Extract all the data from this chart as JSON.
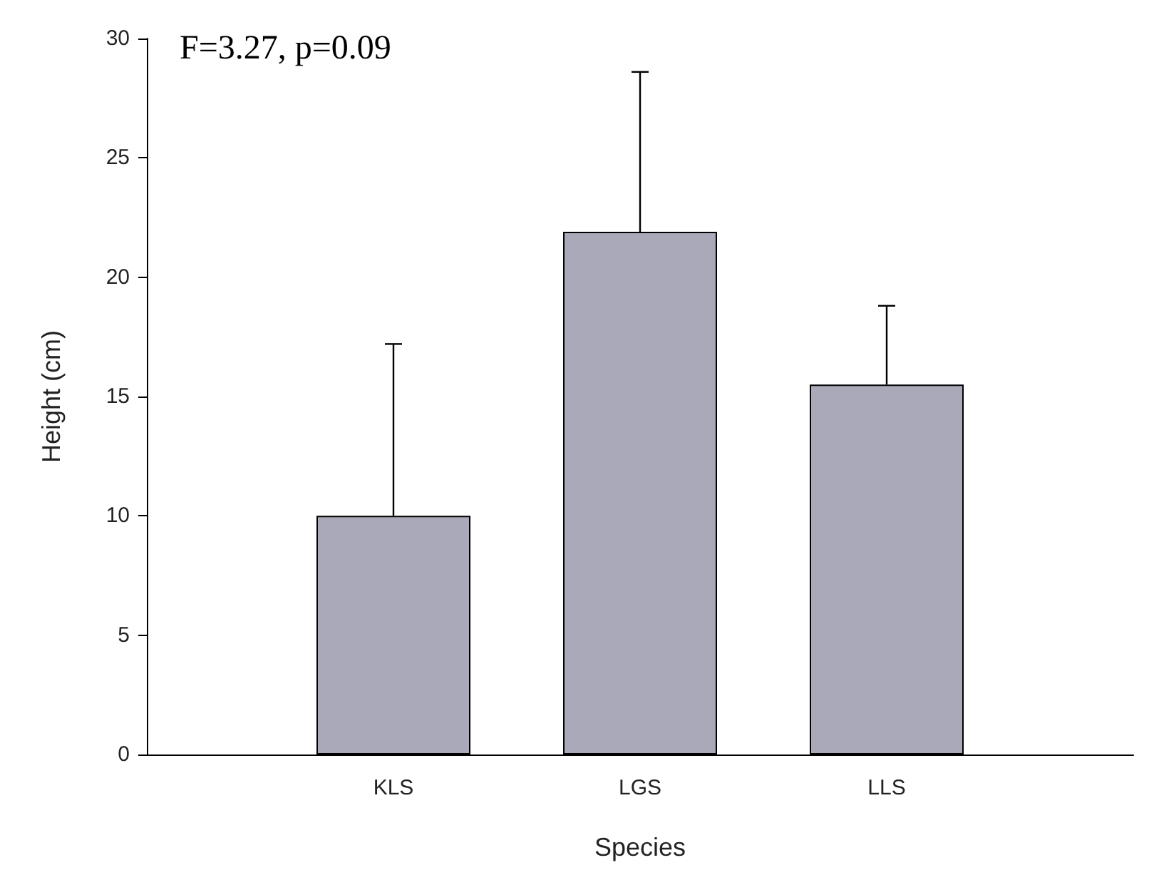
{
  "chart_data": {
    "type": "bar",
    "categories": [
      "KLS",
      "LGS",
      "LLS"
    ],
    "values": [
      10,
      21.9,
      15.5
    ],
    "errors": [
      [
        10,
        17.2
      ],
      [
        21.9,
        28.6
      ],
      [
        15.5,
        18.8
      ]
    ],
    "color": "#a9a9b9",
    "xlabel": "Species",
    "ylabel": "Height (cm)",
    "ylim": [
      0,
      30
    ],
    "yticks": [
      0,
      5,
      10,
      15,
      20,
      25,
      30
    ],
    "grid": false,
    "annotations": [
      "F=3.27, p=0.09"
    ]
  }
}
